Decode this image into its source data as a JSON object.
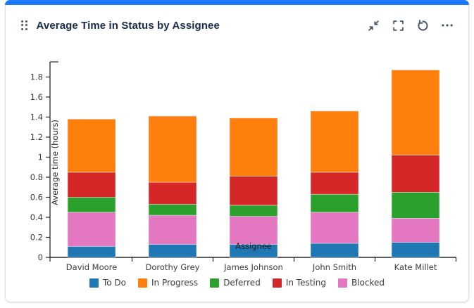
{
  "panel": {
    "title": "Average Time in Status by Assignee",
    "accent_color": "#1d7afc",
    "toolbar": {
      "collapse_label": "collapse",
      "fullscreen_label": "fullscreen",
      "refresh_label": "refresh",
      "more_label": "more"
    }
  },
  "chart_data": {
    "type": "bar",
    "stacked": true,
    "title": "",
    "xlabel": "Assignee",
    "ylabel": "Average time (hours)",
    "categories": [
      "David Moore",
      "Dorothy Grey",
      "James Johnson",
      "John Smith",
      "Kate Millet"
    ],
    "series": [
      {
        "name": "To Do",
        "color": "#1f77b4",
        "values": [
          0.11,
          0.13,
          0.13,
          0.14,
          0.15
        ]
      },
      {
        "name": "Blocked",
        "color": "#e377c2",
        "values": [
          0.34,
          0.29,
          0.28,
          0.31,
          0.24
        ]
      },
      {
        "name": "Deferred",
        "color": "#2ca02c",
        "values": [
          0.15,
          0.11,
          0.11,
          0.18,
          0.26
        ]
      },
      {
        "name": "In Testing",
        "color": "#d62728",
        "values": [
          0.25,
          0.22,
          0.29,
          0.22,
          0.37
        ]
      },
      {
        "name": "In Progress",
        "color": "#ff7f0e",
        "values": [
          0.53,
          0.66,
          0.58,
          0.61,
          0.85
        ]
      }
    ],
    "totals": [
      1.38,
      1.41,
      1.39,
      1.46,
      1.87
    ],
    "stack_order_bottom_to_top": [
      "To Do",
      "Blocked",
      "Deferred",
      "In Testing",
      "In Progress"
    ],
    "legend_order": [
      "To Do",
      "In Progress",
      "Deferred",
      "In Testing",
      "Blocked"
    ],
    "legend_position": "bottom",
    "ylim": [
      0,
      1.95
    ],
    "yticks": [
      0,
      0.2,
      0.4,
      0.6,
      0.8,
      1,
      1.2,
      1.4,
      1.6,
      1.8
    ],
    "grid": false,
    "axis_color": "#262626",
    "tick_label_color": "#3c3c3c"
  }
}
